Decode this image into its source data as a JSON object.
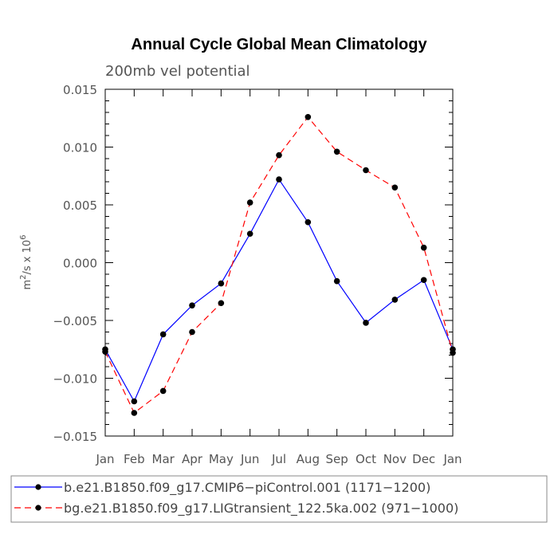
{
  "chart_data": {
    "type": "line",
    "title": "Annual Cycle Global Mean Climatology",
    "subtitle": "200mb vel potential",
    "ylabel_base": "m",
    "ylabel_sup1": "2",
    "ylabel_mid": "/s x 10",
    "ylabel_sup2": "6",
    "xlabel": "",
    "ylim": [
      -0.015,
      0.015
    ],
    "yticks": [
      -0.015,
      -0.01,
      -0.005,
      0.0,
      0.005,
      0.01,
      0.015
    ],
    "ytick_labels": [
      "−0.015",
      "−0.010",
      "−0.005",
      "0.000",
      "0.005",
      "0.010",
      "0.015"
    ],
    "categories": [
      "Jan",
      "Feb",
      "Mar",
      "Apr",
      "May",
      "Jun",
      "Jul",
      "Aug",
      "Sep",
      "Oct",
      "Nov",
      "Dec",
      "Jan"
    ],
    "series": [
      {
        "name": "b.e21.B1850.f09_g17.CMIP6−piControl.001 (1171−1200)",
        "color": "#0000ff",
        "dash": "solid",
        "values": [
          -0.0075,
          -0.012,
          -0.0062,
          -0.0037,
          -0.0018,
          0.0025,
          0.0072,
          0.0035,
          -0.0016,
          -0.0052,
          -0.0032,
          -0.0015,
          -0.0075
        ]
      },
      {
        "name": "bg.e21.B1850.f09_g17.LIGtransient_122.5ka.002 (971−1000)",
        "color": "#ff0000",
        "dash": "dashed",
        "values": [
          -0.0077,
          -0.013,
          -0.0111,
          -0.006,
          -0.0035,
          0.0052,
          0.0093,
          0.0126,
          0.0096,
          0.008,
          0.0065,
          0.0013,
          -0.0078
        ]
      }
    ],
    "marker_color": "#000000"
  }
}
